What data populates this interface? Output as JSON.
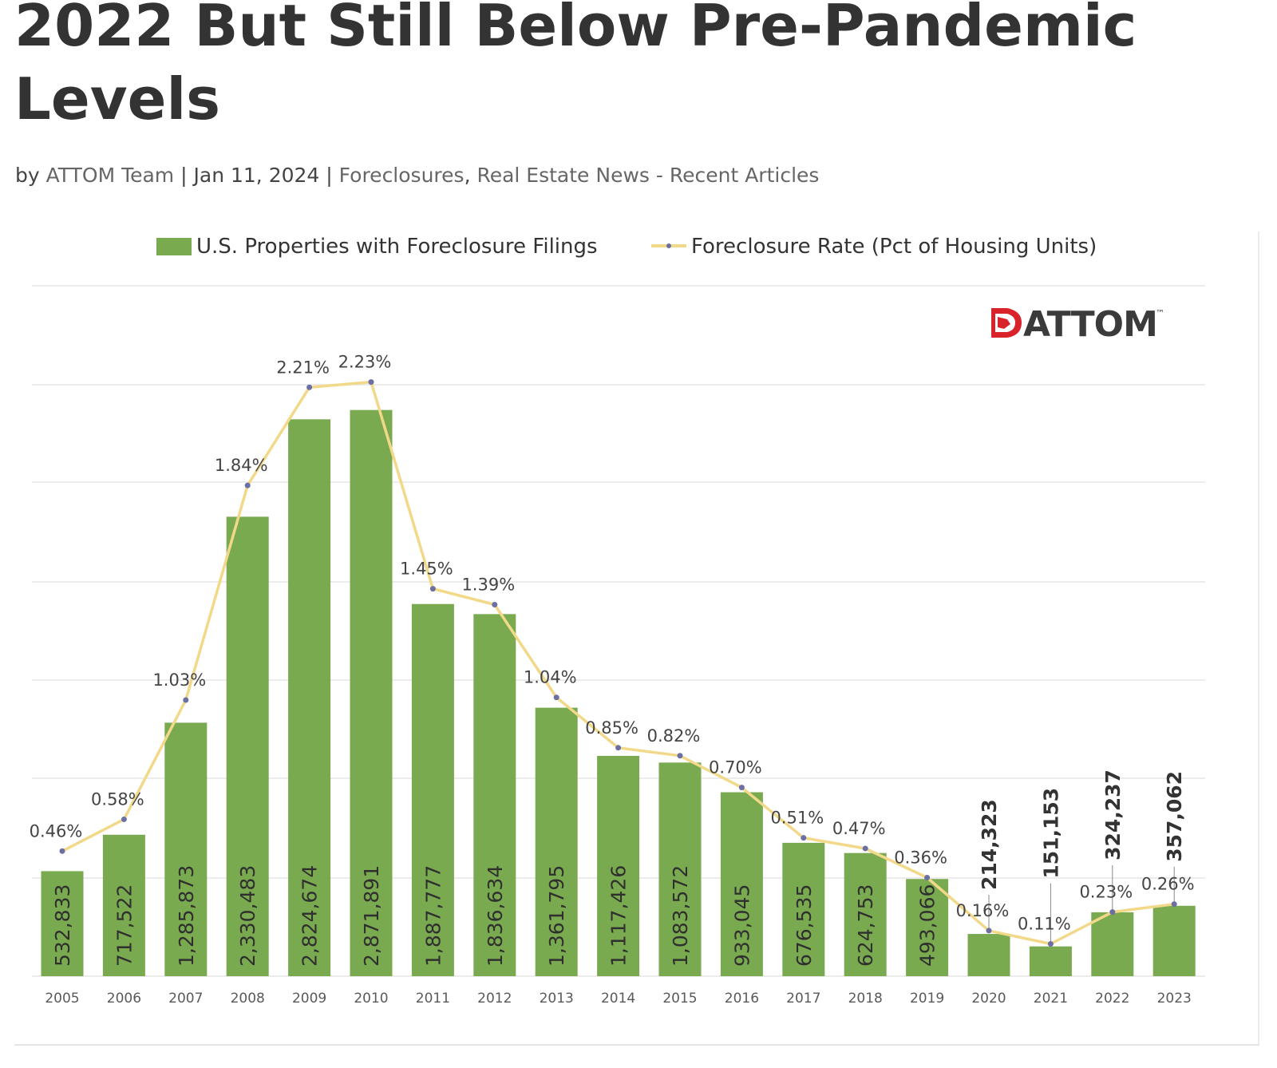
{
  "article": {
    "title": "2022 But Still Below Pre-Pandemic Levels",
    "byline_prefix": "by",
    "author": "ATTOM Team",
    "separator": "|",
    "date": "Jan 11, 2024",
    "categories": [
      "Foreclosures",
      "Real Estate News - Recent Articles"
    ],
    "category_separator": ","
  },
  "logo": {
    "text": "ATTOM",
    "trademark": "™"
  },
  "colors": {
    "bar": "#7aaa4f",
    "line": "#f2d98a",
    "marker": "#6b6fa3",
    "grid": "#e6e6e6",
    "logo_red": "#d8232a"
  },
  "chart_data": {
    "type": "bar",
    "categories": [
      "2005",
      "2006",
      "2007",
      "2008",
      "2009",
      "2010",
      "2011",
      "2012",
      "2013",
      "2014",
      "2015",
      "2016",
      "2017",
      "2018",
      "2019",
      "2020",
      "2021",
      "2022",
      "2023"
    ],
    "series": [
      {
        "name": "U.S. Properties with Foreclosure Filings",
        "type": "bar",
        "values": [
          532833,
          717522,
          1285873,
          2330483,
          2824674,
          2871891,
          1887777,
          1836634,
          1361795,
          1117426,
          1083572,
          933045,
          676535,
          624753,
          493066,
          214323,
          151153,
          324237,
          357062
        ],
        "labels": [
          "532,833",
          "717,522",
          "1,285,873",
          "2,330,483",
          "2,824,674",
          "2,871,891",
          "1,887,777",
          "1,836,634",
          "1,361,795",
          "1,117,426",
          "1,083,572",
          "933,045",
          "676,535",
          "624,753",
          "493,066",
          "214,323",
          "151,153",
          "324,237",
          "357,062"
        ]
      },
      {
        "name": "Foreclosure Rate (Pct of Housing Units)",
        "type": "line",
        "values": [
          0.46,
          0.58,
          1.03,
          1.84,
          2.21,
          2.23,
          1.45,
          1.39,
          1.04,
          0.85,
          0.82,
          0.7,
          0.51,
          0.47,
          0.36,
          0.16,
          0.11,
          0.23,
          0.26
        ],
        "labels": [
          "0.46%",
          "0.58%",
          "1.03%",
          "1.84%",
          "2.21%",
          "2.23%",
          "1.45%",
          "1.39%",
          "1.04%",
          "0.85%",
          "0.82%",
          "0.70%",
          "0.51%",
          "0.47%",
          "0.36%",
          "0.16%",
          "0.11%",
          "0.23%",
          "0.26%"
        ]
      }
    ],
    "ylim": [
      0,
      3500000
    ],
    "y2lim": [
      0,
      2.75
    ],
    "grid": true,
    "legend_position": "top"
  }
}
